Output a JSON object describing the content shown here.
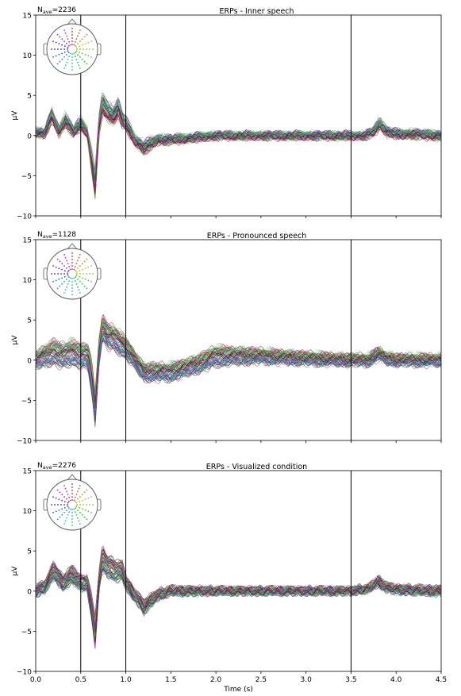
{
  "chart_data": [
    {
      "type": "line",
      "title": "ERPs - Inner speech",
      "nave_label": "N",
      "nave_sub": "ave",
      "nave_value": "=2236",
      "ylabel": "μV",
      "xlabel": "",
      "xlim": [
        0,
        4.5
      ],
      "ylim": [
        -10,
        15
      ],
      "yticks": [
        -10,
        -5,
        0,
        5,
        10,
        15
      ],
      "xticks": [],
      "vlines": [
        0.5,
        1.0,
        3.5
      ],
      "legend": "none",
      "channels": 64,
      "series_keyframes": {
        "x": [
          0.0,
          0.1,
          0.18,
          0.26,
          0.33,
          0.42,
          0.5,
          0.57,
          0.62,
          0.66,
          0.7,
          0.74,
          0.8,
          0.86,
          0.92,
          0.96,
          1.0,
          1.1,
          1.2,
          1.35,
          1.5,
          2.0,
          2.5,
          3.0,
          3.5,
          3.65,
          3.75,
          3.82,
          3.9,
          4.0,
          4.2,
          4.5
        ],
        "mean": [
          0.5,
          0.3,
          2.5,
          0.5,
          2.0,
          0.5,
          1.5,
          0.5,
          -3.0,
          -6.0,
          1.0,
          4.0,
          3.0,
          2.5,
          3.5,
          2.0,
          1.5,
          -0.5,
          -1.5,
          -0.5,
          -0.5,
          0.0,
          0.0,
          0.0,
          0.0,
          0.0,
          0.5,
          1.5,
          0.5,
          0.2,
          0.2,
          0.0
        ],
        "spread": [
          0.5,
          0.5,
          0.8,
          0.6,
          0.8,
          0.6,
          0.7,
          0.6,
          1.5,
          2.0,
          1.2,
          1.5,
          1.2,
          1.2,
          1.2,
          1.0,
          0.8,
          0.6,
          0.8,
          0.5,
          0.4,
          0.3,
          0.3,
          0.3,
          0.3,
          0.3,
          0.5,
          0.6,
          0.5,
          0.4,
          0.4,
          0.4
        ]
      }
    },
    {
      "type": "line",
      "title": "ERPs - Pronounced speech",
      "nave_label": "N",
      "nave_sub": "ave",
      "nave_value": "=1128",
      "ylabel": "μV",
      "xlabel": "",
      "xlim": [
        0,
        4.5
      ],
      "ylim": [
        -10,
        15
      ],
      "yticks": [
        -10,
        -5,
        0,
        5,
        10,
        15
      ],
      "xticks": [],
      "vlines": [
        0.5,
        1.0,
        3.5
      ],
      "legend": "none",
      "channels": 64,
      "series_keyframes": {
        "x": [
          0.0,
          0.1,
          0.2,
          0.3,
          0.4,
          0.5,
          0.58,
          0.62,
          0.66,
          0.7,
          0.74,
          0.8,
          0.9,
          1.0,
          1.1,
          1.2,
          1.35,
          1.5,
          1.8,
          2.0,
          2.2,
          2.5,
          3.0,
          3.5,
          3.7,
          3.8,
          3.9,
          4.0,
          4.2,
          4.5
        ],
        "mean": [
          0.0,
          0.5,
          1.0,
          0.5,
          1.0,
          0.5,
          0.5,
          -2.0,
          -6.0,
          1.0,
          4.0,
          3.0,
          2.5,
          1.5,
          0.0,
          -1.5,
          -1.5,
          -1.5,
          -0.5,
          0.5,
          0.5,
          0.5,
          0.2,
          0.0,
          0.0,
          0.8,
          0.2,
          0.0,
          0.0,
          0.0
        ],
        "spread": [
          1.0,
          1.2,
          1.5,
          1.5,
          1.5,
          1.5,
          1.5,
          2.0,
          2.2,
          1.5,
          1.5,
          1.5,
          1.5,
          1.2,
          1.0,
          1.0,
          1.0,
          1.0,
          1.0,
          1.2,
          1.0,
          0.8,
          0.7,
          0.6,
          0.6,
          0.7,
          0.6,
          0.6,
          0.6,
          0.6
        ]
      }
    },
    {
      "type": "line",
      "title": "ERPs - Visualized condition",
      "nave_label": "N",
      "nave_sub": "ave",
      "nave_value": "=2276",
      "ylabel": "μV",
      "xlabel": "Time (s)",
      "xlim": [
        0,
        4.5
      ],
      "ylim": [
        -10,
        15
      ],
      "yticks": [
        -10,
        -5,
        0,
        5,
        10,
        15
      ],
      "xticks": [
        "0.0",
        "0.5",
        "1.0",
        "1.5",
        "2.0",
        "2.5",
        "3.0",
        "3.5",
        "4.0",
        "4.5"
      ],
      "vlines": [
        0.5,
        1.0,
        3.5
      ],
      "legend": "none",
      "channels": 64,
      "series_keyframes": {
        "x": [
          0.0,
          0.1,
          0.2,
          0.3,
          0.4,
          0.5,
          0.57,
          0.62,
          0.66,
          0.7,
          0.74,
          0.8,
          0.9,
          0.96,
          1.0,
          1.1,
          1.2,
          1.35,
          1.5,
          2.0,
          2.5,
          3.0,
          3.5,
          3.7,
          3.8,
          3.9,
          4.0,
          4.2,
          4.5
        ],
        "mean": [
          0.0,
          0.5,
          2.5,
          1.0,
          2.0,
          1.0,
          1.0,
          -2.0,
          -5.0,
          1.0,
          4.0,
          3.0,
          2.5,
          2.5,
          1.0,
          -0.5,
          -2.0,
          -0.5,
          0.0,
          0.0,
          0.0,
          0.0,
          0.0,
          0.3,
          1.2,
          0.4,
          0.2,
          0.1,
          0.0
        ],
        "spread": [
          0.6,
          0.6,
          1.0,
          0.8,
          1.0,
          0.8,
          0.8,
          1.5,
          2.0,
          1.2,
          1.5,
          1.2,
          1.2,
          1.0,
          0.8,
          0.6,
          0.8,
          0.5,
          0.4,
          0.3,
          0.3,
          0.3,
          0.3,
          0.3,
          0.5,
          0.4,
          0.4,
          0.4,
          0.4
        ]
      }
    }
  ],
  "colors": {
    "vline": "#000000",
    "axes": "#000000",
    "channel_palette": [
      "#0b0b0b",
      "#3a0d4e",
      "#6a1b7a",
      "#a0176e",
      "#c2185b",
      "#8b1a1a",
      "#c62828",
      "#3949ab",
      "#1e88e5",
      "#5c6bc0",
      "#00897b",
      "#26a69a",
      "#43a047",
      "#7cb342",
      "#8bc34a",
      "#9ccc65",
      "#66bb6a",
      "#b2df8a",
      "#2e7d32",
      "#ab47bc"
    ]
  },
  "sensor_inset": {
    "icon": "head-sensor-layout-icon"
  }
}
